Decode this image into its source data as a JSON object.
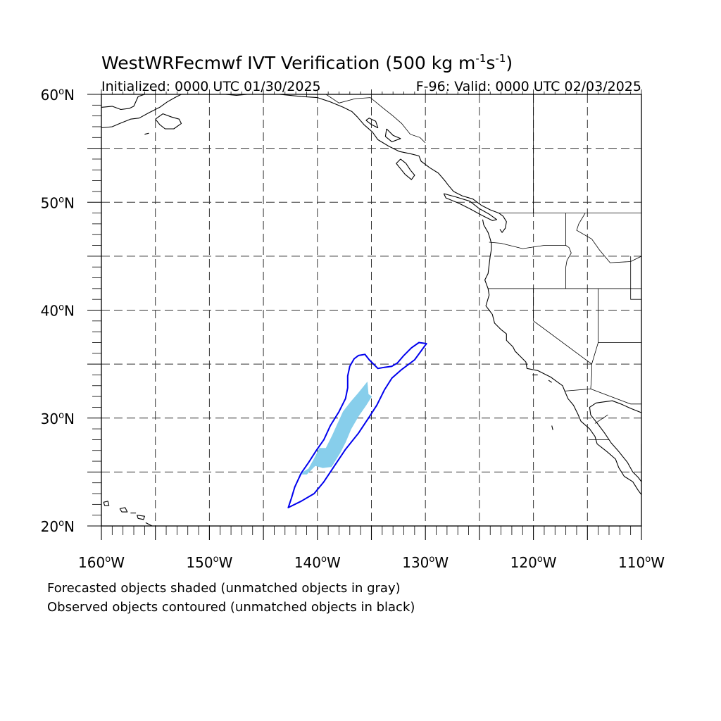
{
  "title": {
    "main": "WestWRFecmwf IVT Verification (500 kg m",
    "sup1": "-1",
    "mid": "s",
    "sup2": "-1",
    "close": ")"
  },
  "subtitle_left": "Initialized: 0000 UTC 01/30/2025",
  "subtitle_right": "F-96: Valid: 0000 UTC 02/03/2025",
  "map": {
    "lon_range": [
      -160,
      -110
    ],
    "lat_range": [
      20,
      60
    ],
    "projection": "cylindrical equidistant",
    "grid": "dashed every 5 degrees",
    "lon_ticks": [
      {
        "label": "160",
        "unit": "o",
        "dir": "W",
        "lon": -160
      },
      {
        "label": "150",
        "unit": "o",
        "dir": "W",
        "lon": -150
      },
      {
        "label": "140",
        "unit": "o",
        "dir": "W",
        "lon": -140
      },
      {
        "label": "130",
        "unit": "o",
        "dir": "W",
        "lon": -130
      },
      {
        "label": "120",
        "unit": "o",
        "dir": "W",
        "lon": -120
      },
      {
        "label": "110",
        "unit": "o",
        "dir": "W",
        "lon": -110
      }
    ],
    "lat_ticks": [
      {
        "label": "60",
        "unit": "o",
        "dir": "N",
        "lat": 60
      },
      {
        "label": "50",
        "unit": "o",
        "dir": "N",
        "lat": 50
      },
      {
        "label": "40",
        "unit": "o",
        "dir": "N",
        "lat": 40
      },
      {
        "label": "30",
        "unit": "o",
        "dir": "N",
        "lat": 30
      },
      {
        "label": "20",
        "unit": "o",
        "dir": "N",
        "lat": 20
      }
    ],
    "forecast_object_color": "#87ceeb",
    "observed_contour_color": "#0000ee",
    "forecast_object": [
      [
        -141.6,
        24.8
      ],
      [
        -140.8,
        25.3
      ],
      [
        -140.3,
        26.2
      ],
      [
        -139.8,
        27.2
      ],
      [
        -139.2,
        27.2
      ],
      [
        -138.6,
        28.4
      ],
      [
        -138.1,
        29.5
      ],
      [
        -137.6,
        30.6
      ],
      [
        -136.9,
        31.5
      ],
      [
        -136.2,
        32.3
      ],
      [
        -135.4,
        33.3
      ],
      [
        -135.3,
        32.2
      ],
      [
        -135.0,
        32.0
      ],
      [
        -135.5,
        31.2
      ],
      [
        -136.2,
        30.2
      ],
      [
        -136.9,
        29.0
      ],
      [
        -137.4,
        27.8
      ],
      [
        -137.9,
        26.8
      ],
      [
        -138.7,
        25.5
      ],
      [
        -139.5,
        25.4
      ],
      [
        -140.2,
        25.6
      ],
      [
        -141.0,
        24.8
      ]
    ],
    "observed_contour": [
      [
        -142.7,
        21.7
      ],
      [
        -141.5,
        22.3
      ],
      [
        -140.3,
        23.0
      ],
      [
        -139.4,
        24.1
      ],
      [
        -138.4,
        25.6
      ],
      [
        -137.4,
        27.1
      ],
      [
        -136.2,
        28.6
      ],
      [
        -135.2,
        30.1
      ],
      [
        -134.5,
        31.2
      ],
      [
        -133.8,
        32.6
      ],
      [
        -133.1,
        33.7
      ],
      [
        -132.2,
        34.5
      ],
      [
        -131.0,
        35.4
      ],
      [
        -129.9,
        36.9
      ],
      [
        -130.6,
        37.0
      ],
      [
        -131.3,
        36.5
      ],
      [
        -132.0,
        35.8
      ],
      [
        -132.6,
        35.1
      ],
      [
        -133.1,
        34.8
      ],
      [
        -133.8,
        34.7
      ],
      [
        -134.4,
        34.6
      ],
      [
        -135.2,
        35.4
      ],
      [
        -135.6,
        35.9
      ],
      [
        -136.2,
        35.8
      ],
      [
        -136.6,
        35.5
      ],
      [
        -137.0,
        34.8
      ],
      [
        -137.2,
        33.9
      ],
      [
        -137.2,
        32.8
      ],
      [
        -137.4,
        31.8
      ],
      [
        -138.0,
        30.6
      ],
      [
        -138.8,
        29.3
      ],
      [
        -139.4,
        28.0
      ],
      [
        -140.1,
        27.0
      ],
      [
        -140.8,
        25.9
      ],
      [
        -141.5,
        24.9
      ],
      [
        -142.1,
        23.6
      ],
      [
        -142.4,
        22.6
      ]
    ],
    "coastlines": [
      [
        [
          -160.0,
          58.8
        ],
        [
          -159.0,
          58.9
        ],
        [
          -158.2,
          58.6
        ],
        [
          -157.4,
          58.7
        ],
        [
          -157.0,
          58.9
        ],
        [
          -156.6,
          59.8
        ],
        [
          -156.0,
          60.0
        ]
      ],
      [
        [
          -160.0,
          56.9
        ],
        [
          -159.0,
          57.0
        ],
        [
          -158.3,
          57.3
        ],
        [
          -157.3,
          57.7
        ],
        [
          -156.5,
          57.8
        ],
        [
          -155.6,
          58.3
        ],
        [
          -154.6,
          58.8
        ],
        [
          -153.9,
          59.3
        ],
        [
          -153.2,
          59.7
        ],
        [
          -152.6,
          60.0
        ]
      ],
      [
        [
          -155.0,
          57.7
        ],
        [
          -154.3,
          58.2
        ],
        [
          -153.5,
          57.9
        ],
        [
          -152.8,
          57.7
        ],
        [
          -152.6,
          57.3
        ],
        [
          -153.3,
          56.8
        ],
        [
          -154.1,
          56.8
        ],
        [
          -154.6,
          57.2
        ],
        [
          -155.0,
          57.7
        ]
      ],
      [
        [
          -156.0,
          56.3
        ],
        [
          -155.6,
          56.4
        ]
      ],
      [
        [
          -148.5,
          60.0
        ],
        [
          -147.5,
          59.9
        ],
        [
          -146.5,
          60.0
        ],
        [
          -145.5,
          60.0
        ]
      ],
      [
        [
          -143.5,
          60.0
        ],
        [
          -141.5,
          59.8
        ],
        [
          -140.0,
          59.7
        ],
        [
          -138.8,
          59.3
        ],
        [
          -137.6,
          58.8
        ],
        [
          -136.8,
          58.4
        ],
        [
          -136.3,
          57.9
        ],
        [
          -135.7,
          57.2
        ],
        [
          -134.9,
          56.5
        ],
        [
          -134.4,
          55.8
        ],
        [
          -133.4,
          55.2
        ],
        [
          -132.4,
          54.7
        ],
        [
          -131.4,
          54.5
        ],
        [
          -130.6,
          54.3
        ],
        [
          -130.4,
          53.8
        ],
        [
          -129.6,
          53.2
        ],
        [
          -128.8,
          52.7
        ],
        [
          -128.2,
          52.0
        ],
        [
          -127.9,
          51.6
        ],
        [
          -127.4,
          51.0
        ],
        [
          -126.6,
          50.6
        ],
        [
          -125.6,
          50.3
        ],
        [
          -124.8,
          49.7
        ],
        [
          -124.0,
          49.3
        ],
        [
          -123.2,
          49.0
        ]
      ],
      [
        [
          -132.3,
          54.0
        ],
        [
          -131.8,
          53.6
        ],
        [
          -131.4,
          53.0
        ],
        [
          -131.0,
          52.5
        ],
        [
          -131.3,
          52.1
        ],
        [
          -131.9,
          52.6
        ],
        [
          -132.3,
          53.1
        ],
        [
          -132.7,
          53.6
        ],
        [
          -132.3,
          54.0
        ]
      ],
      [
        [
          -133.6,
          56.8
        ],
        [
          -133.0,
          56.2
        ],
        [
          -132.3,
          55.9
        ],
        [
          -133.1,
          55.6
        ],
        [
          -133.7,
          56.1
        ],
        [
          -133.6,
          56.8
        ]
      ],
      [
        [
          -135.5,
          57.6
        ],
        [
          -135.0,
          57.2
        ],
        [
          -134.4,
          56.9
        ],
        [
          -134.6,
          57.5
        ],
        [
          -135.2,
          57.8
        ],
        [
          -135.5,
          57.6
        ]
      ],
      [
        [
          -128.3,
          50.8
        ],
        [
          -127.2,
          50.5
        ],
        [
          -125.9,
          50.1
        ],
        [
          -125.0,
          49.4
        ],
        [
          -124.1,
          48.9
        ],
        [
          -123.4,
          48.4
        ],
        [
          -123.8,
          48.3
        ],
        [
          -124.8,
          48.8
        ],
        [
          -125.9,
          49.4
        ],
        [
          -126.9,
          49.9
        ],
        [
          -128.1,
          50.4
        ],
        [
          -128.3,
          50.8
        ]
      ],
      [
        [
          -123.2,
          49.0
        ],
        [
          -122.8,
          48.7
        ],
        [
          -122.5,
          48.2
        ],
        [
          -122.6,
          47.6
        ],
        [
          -122.9,
          47.2
        ],
        [
          -123.1,
          47.5
        ]
      ],
      [
        [
          -124.7,
          48.4
        ],
        [
          -124.6,
          47.9
        ],
        [
          -124.2,
          47.2
        ],
        [
          -124.0,
          46.6
        ],
        [
          -123.9,
          46.2
        ],
        [
          -123.9,
          45.6
        ],
        [
          -124.0,
          45.0
        ],
        [
          -124.1,
          44.2
        ],
        [
          -124.2,
          43.4
        ],
        [
          -124.5,
          42.8
        ],
        [
          -124.2,
          42.0
        ],
        [
          -124.1,
          41.4
        ],
        [
          -124.4,
          40.4
        ],
        [
          -123.8,
          39.6
        ],
        [
          -123.6,
          38.8
        ],
        [
          -123.0,
          38.2
        ],
        [
          -122.5,
          37.8
        ],
        [
          -122.5,
          37.2
        ],
        [
          -121.9,
          36.6
        ],
        [
          -121.7,
          36.2
        ],
        [
          -121.2,
          35.7
        ],
        [
          -120.7,
          35.2
        ],
        [
          -120.6,
          34.6
        ],
        [
          -119.6,
          34.4
        ],
        [
          -118.8,
          34.0
        ],
        [
          -118.4,
          33.8
        ],
        [
          -118.0,
          33.5
        ],
        [
          -117.3,
          33.0
        ],
        [
          -117.1,
          32.5
        ],
        [
          -116.8,
          31.8
        ],
        [
          -116.3,
          31.2
        ],
        [
          -115.9,
          30.4
        ],
        [
          -115.6,
          29.7
        ],
        [
          -114.8,
          29.0
        ],
        [
          -114.3,
          28.3
        ],
        [
          -114.1,
          27.6
        ],
        [
          -113.2,
          26.9
        ],
        [
          -112.4,
          26.2
        ],
        [
          -112.1,
          25.4
        ],
        [
          -111.6,
          24.6
        ],
        [
          -110.8,
          24.1
        ],
        [
          -110.3,
          23.3
        ],
        [
          -110.0,
          22.9
        ]
      ],
      [
        [
          -110.0,
          30.5
        ],
        [
          -111.0,
          30.9
        ],
        [
          -111.9,
          31.3
        ],
        [
          -112.7,
          31.6
        ],
        [
          -113.5,
          31.5
        ],
        [
          -114.2,
          31.4
        ],
        [
          -114.8,
          31.0
        ],
        [
          -114.7,
          30.3
        ],
        [
          -114.0,
          29.4
        ],
        [
          -113.4,
          28.6
        ],
        [
          -112.8,
          27.7
        ],
        [
          -112.1,
          26.9
        ],
        [
          -111.3,
          25.9
        ],
        [
          -110.8,
          25.0
        ],
        [
          -110.3,
          24.5
        ],
        [
          -110.0,
          24.1
        ]
      ],
      [
        [
          -110.0,
          25.6
        ],
        [
          -110.0,
          27.6
        ]
      ],
      [
        [
          -159.8,
          22.2
        ],
        [
          -159.4,
          22.3
        ],
        [
          -159.3,
          21.9
        ],
        [
          -159.7,
          21.9
        ],
        [
          -159.8,
          22.2
        ]
      ],
      [
        [
          -158.3,
          21.6
        ],
        [
          -157.8,
          21.7
        ],
        [
          -157.6,
          21.3
        ],
        [
          -158.1,
          21.3
        ],
        [
          -158.3,
          21.6
        ]
      ],
      [
        [
          -157.3,
          21.2
        ],
        [
          -156.8,
          21.2
        ]
      ],
      [
        [
          -156.7,
          21.0
        ],
        [
          -156.0,
          20.9
        ],
        [
          -156.1,
          20.6
        ],
        [
          -156.6,
          20.7
        ],
        [
          -156.7,
          21.0
        ]
      ],
      [
        [
          -155.9,
          20.3
        ],
        [
          -155.3,
          20.0
        ]
      ],
      [
        [
          -118.6,
          33.5
        ],
        [
          -118.3,
          33.3
        ]
      ],
      [
        [
          -120.1,
          34.0
        ],
        [
          -119.6,
          34.0
        ]
      ],
      [
        [
          -118.3,
          29.3
        ],
        [
          -118.2,
          28.9
        ]
      ]
    ],
    "boundaries": [
      [
        [
          -141.0,
          60.0
        ],
        [
          -141.0,
          59.8
        ]
      ],
      [
        [
          -139.2,
          60.0
        ],
        [
          -138.0,
          59.2
        ],
        [
          -136.5,
          59.6
        ],
        [
          -135.1,
          59.7
        ],
        [
          -134.0,
          58.8
        ],
        [
          -133.0,
          58.0
        ],
        [
          -132.2,
          57.3
        ],
        [
          -131.4,
          56.3
        ],
        [
          -130.5,
          56.0
        ],
        [
          -130.0,
          55.5
        ]
      ],
      [
        [
          -123.2,
          49.0
        ],
        [
          -110.0,
          49.0
        ]
      ],
      [
        [
          -120.0,
          60.0
        ],
        [
          -120.0,
          49.0
        ]
      ],
      [
        [
          -124.2,
          42.0
        ],
        [
          -110.0,
          42.0
        ]
      ],
      [
        [
          -120.0,
          42.0
        ],
        [
          -120.0,
          39.0
        ],
        [
          -114.6,
          35.0
        ]
      ],
      [
        [
          -117.0,
          49.0
        ],
        [
          -117.0,
          46.0
        ],
        [
          -116.7,
          45.8
        ],
        [
          -116.5,
          45.3
        ],
        [
          -116.9,
          44.6
        ],
        [
          -117.0,
          44.0
        ],
        [
          -117.0,
          42.0
        ]
      ],
      [
        [
          -124.1,
          46.3
        ],
        [
          -123.0,
          46.2
        ],
        [
          -121.0,
          45.7
        ],
        [
          -119.0,
          46.0
        ],
        [
          -117.0,
          46.0
        ]
      ],
      [
        [
          -111.0,
          45.0
        ],
        [
          -111.0,
          41.0
        ],
        [
          -110.0,
          41.0
        ]
      ],
      [
        [
          -114.0,
          42.0
        ],
        [
          -114.0,
          37.0
        ],
        [
          -110.0,
          37.0
        ]
      ],
      [
        [
          -114.0,
          37.0
        ],
        [
          -114.6,
          35.0
        ],
        [
          -114.6,
          34.0
        ],
        [
          -114.7,
          32.7
        ],
        [
          -117.1,
          32.5
        ]
      ],
      [
        [
          -114.7,
          32.7
        ],
        [
          -111.0,
          31.3
        ],
        [
          -110.0,
          31.3
        ]
      ],
      [
        [
          -115.2,
          49.0
        ],
        [
          -115.8,
          48.0
        ],
        [
          -116.0,
          47.4
        ],
        [
          -114.6,
          46.6
        ],
        [
          -113.9,
          45.6
        ],
        [
          -112.9,
          44.4
        ],
        [
          -111.0,
          44.5
        ],
        [
          -110.0,
          45.0
        ]
      ],
      [
        [
          -114.9,
          28.0
        ],
        [
          -113.0,
          28.0
        ]
      ],
      [
        [
          -114.3,
          29.5
        ],
        [
          -113.1,
          30.3
        ]
      ]
    ]
  },
  "footer": {
    "line1": "Forecasted objects shaded (unmatched objects in gray)",
    "line2": "Observed objects contoured (unmatched objects in black)"
  }
}
